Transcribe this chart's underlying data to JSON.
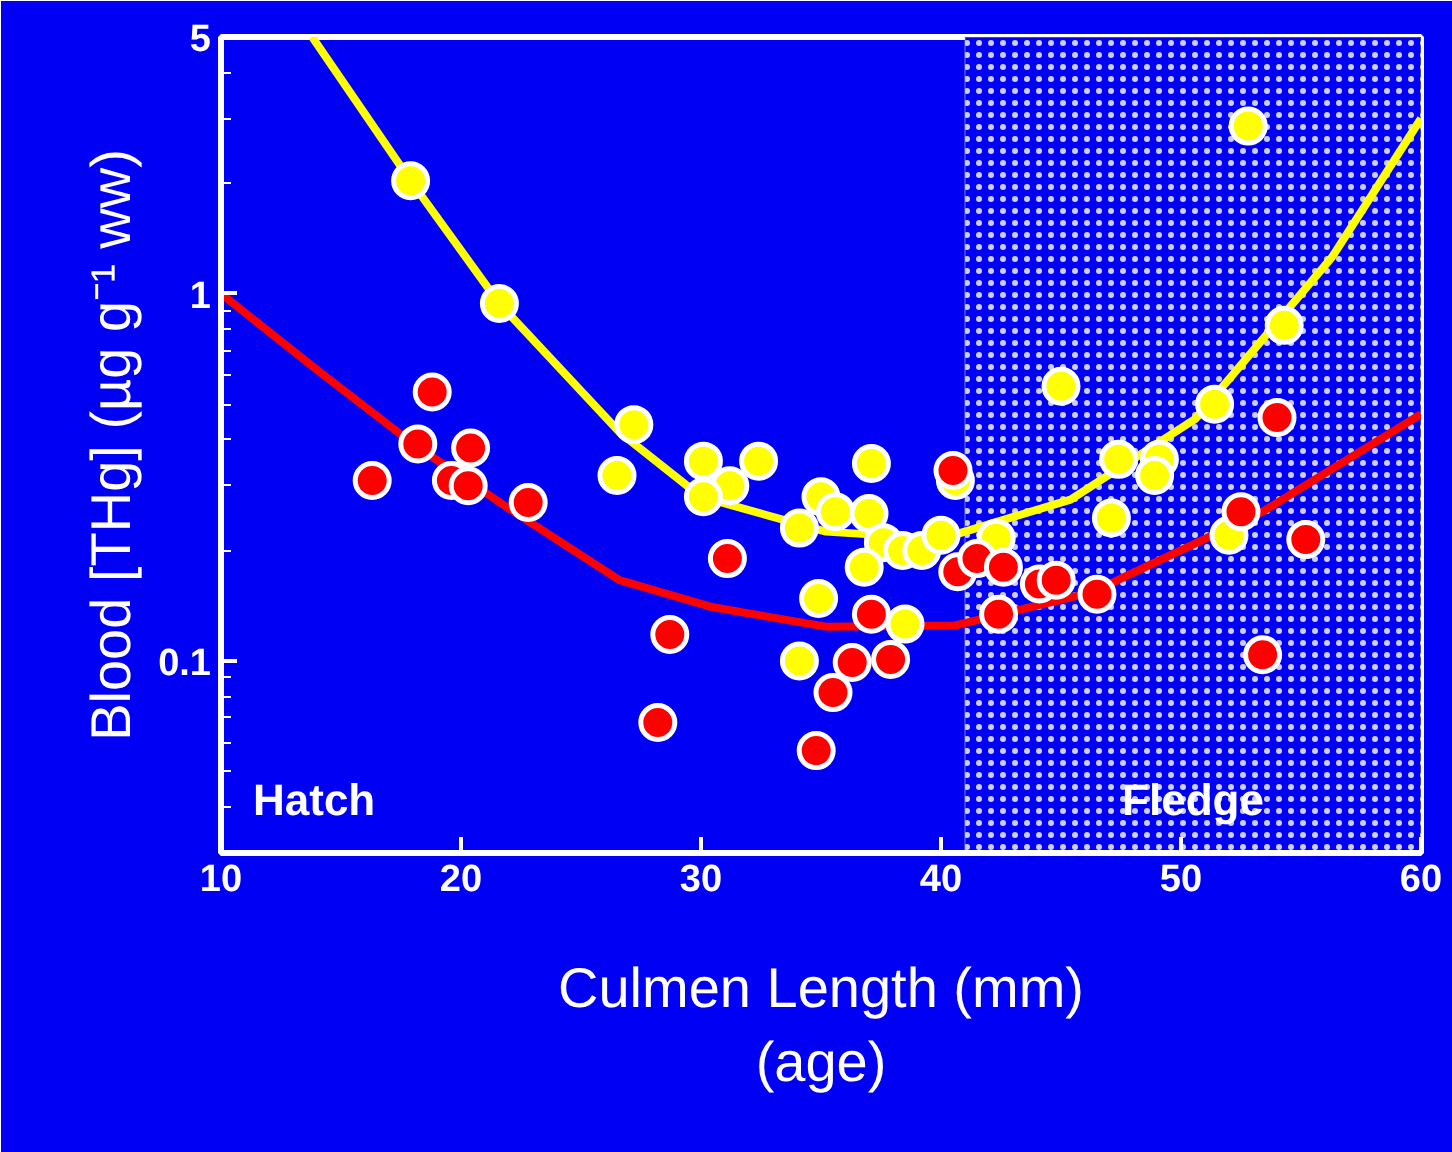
{
  "chart_data": {
    "type": "scatter",
    "xlabel": "Culmen Length (mm)\n(age)",
    "ylabel": "Blood [THg] (µg g⁻¹ ww)",
    "log": "y",
    "xlim": [
      10,
      60
    ],
    "ylim": [
      0.03,
      5
    ],
    "xticks": [
      10,
      20,
      30,
      40,
      50,
      60
    ],
    "yticks": [
      0.1,
      1,
      5
    ],
    "grid": false,
    "annotations": [
      "Hatch"
    ],
    "bands": [
      {
        "axis": "x",
        "from": 41,
        "to": 60,
        "label": "Fledge"
      }
    ],
    "series": [
      {
        "marker": "circle",
        "color": "#ffff00",
        "x": [
          17.9,
          21.6,
          27.2,
          26.5,
          30.1,
          31.2,
          32.4,
          30.1,
          35.0,
          34.1,
          34.9,
          34.1,
          35.6,
          37.1,
          37.0,
          37.6,
          36.8,
          38.4,
          39.2,
          40.0,
          40.6,
          42.3,
          38.5,
          45.0,
          47.4,
          49.1,
          48.9,
          47.1,
          51.4,
          52.0,
          54.3,
          52.8
        ],
        "values": [
          2.03,
          0.94,
          0.44,
          0.32,
          0.35,
          0.3,
          0.35,
          0.28,
          0.28,
          0.23,
          0.148,
          0.1,
          0.255,
          0.345,
          0.252,
          0.21,
          0.18,
          0.2,
          0.2,
          0.22,
          0.31,
          0.216,
          0.126,
          0.56,
          0.354,
          0.354,
          0.32,
          0.245,
          0.5,
          0.22,
          0.82,
          2.86
        ]
      },
      {
        "marker": "circle",
        "color": "#ff0000",
        "x": [
          16.3,
          18.2,
          18.8,
          19.6,
          20.3,
          20.4,
          22.8,
          31.1,
          28.7,
          28.2,
          34.8,
          35.5,
          36.3,
          37.9,
          37.1,
          40.5,
          40.7,
          41.5,
          42.6,
          42.4,
          44.1,
          44.8,
          46.5,
          52.5,
          54.0,
          55.2,
          53.4
        ],
        "values": [
          0.31,
          0.39,
          0.54,
          0.31,
          0.3,
          0.38,
          0.27,
          0.19,
          0.118,
          0.068,
          0.057,
          0.082,
          0.099,
          0.101,
          0.134,
          0.33,
          0.175,
          0.19,
          0.18,
          0.134,
          0.162,
          0.166,
          0.152,
          0.255,
          0.46,
          0.214,
          0.104
        ]
      },
      {
        "type": "line",
        "marker": "none",
        "color": "#ffff00",
        "x": [
          13.8,
          17.9,
          21.6,
          26.6,
          30.0,
          35.2,
          40.0,
          45.4,
          50.6,
          56.3,
          60
        ],
        "values": [
          5,
          2.03,
          0.94,
          0.42,
          0.28,
          0.225,
          0.215,
          0.275,
          0.456,
          1.26,
          3.0
        ]
      },
      {
        "type": "line",
        "marker": "none",
        "color": "#ff0000",
        "x": [
          10,
          14,
          18.0,
          22,
          26.6,
          30.5,
          35.2,
          40.6,
          46.3,
          53.4,
          60
        ],
        "values": [
          1.0,
          0.62,
          0.39,
          0.26,
          0.166,
          0.14,
          0.124,
          0.125,
          0.154,
          0.255,
          0.47
        ]
      }
    ]
  }
}
